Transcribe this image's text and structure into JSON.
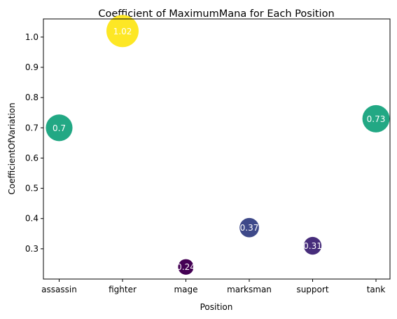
{
  "chart_data": {
    "type": "scatter",
    "title": "Coefficient of MaximumMana for Each Position",
    "xlabel": "Position",
    "ylabel": "CoefficientOfVariation",
    "categories": [
      "assassin",
      "fighter",
      "mage",
      "marksman",
      "support",
      "tank"
    ],
    "values": [
      0.7,
      1.02,
      0.24,
      0.37,
      0.31,
      0.73
    ],
    "data_labels": [
      "0.7",
      "1.02",
      "0.24",
      "0.37",
      "0.31",
      "0.73"
    ],
    "ylim": [
      0.2,
      1.06
    ],
    "yticks": [
      0.3,
      0.4,
      0.5,
      0.6,
      0.7,
      0.8,
      0.9,
      1.0
    ],
    "ytick_labels": [
      "0.3",
      "0.4",
      "0.5",
      "0.6",
      "0.7",
      "0.8",
      "0.9",
      "1.0"
    ],
    "marker_size_encodes": "value",
    "colormap": "viridis",
    "point_colors": [
      "#22a884",
      "#fde725",
      "#440154",
      "#3e4989",
      "#472d7b",
      "#22a884"
    ],
    "grid": false,
    "legend": "none"
  }
}
